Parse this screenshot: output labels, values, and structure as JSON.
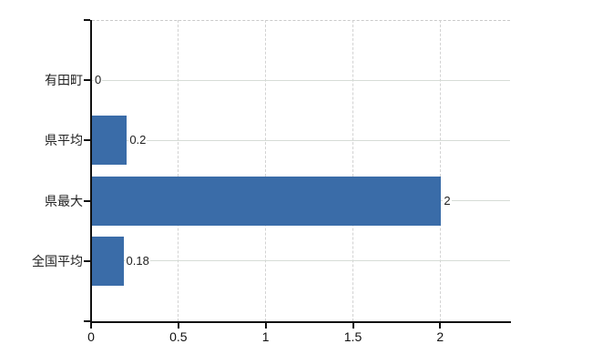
{
  "chart_data": {
    "type": "bar",
    "orientation": "horizontal",
    "title": "",
    "categories": [
      "有田町",
      "県平均",
      "県最大",
      "全国平均"
    ],
    "values": [
      0,
      0.2,
      2,
      0.18
    ],
    "value_labels": [
      "0",
      "0.2",
      "2",
      "0.18"
    ],
    "x_ticks": [
      0,
      0.5,
      1,
      1.5,
      2
    ],
    "x_tick_labels": [
      "0",
      "0.5",
      "1",
      "1.5",
      "2"
    ],
    "xlim": [
      0,
      2.4
    ],
    "grid": true,
    "legend": false,
    "gridline_style": {
      "vertical": "dashed",
      "horizontal": "solid",
      "top_border": "dashed"
    }
  },
  "colors": {
    "background": "#ffffff",
    "bar": "#3a6ca8",
    "axis": "#111111",
    "h_gridline": "#d6dcd6",
    "v_gridline": "#d2d2d2",
    "top_border": "#c9c9c9",
    "category_label": "#222222",
    "value_label": "#222222",
    "tick_label": "#111111"
  }
}
